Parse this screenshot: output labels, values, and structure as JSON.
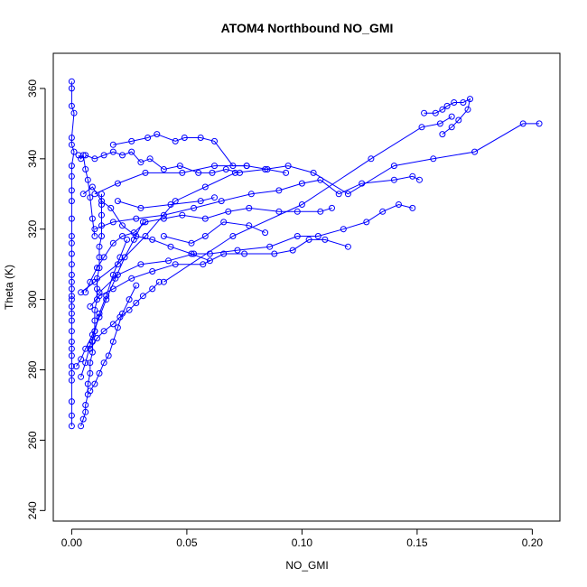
{
  "chart_data": {
    "type": "scatter",
    "title": "ATOM4 Northbound NO_GMI",
    "xlabel": "NO_GMI",
    "ylabel": "Theta (K)",
    "xlim": [
      -0.008,
      0.212
    ],
    "ylim": [
      237,
      370
    ],
    "xticks": [
      0.0,
      0.05,
      0.1,
      0.15,
      0.2
    ],
    "xtick_labels": [
      "0.00",
      "0.05",
      "0.10",
      "0.15",
      "0.20"
    ],
    "yticks": [
      240,
      260,
      280,
      300,
      320,
      340,
      360
    ],
    "ytick_labels": [
      "240",
      "260",
      "280",
      "300",
      "320",
      "340",
      "360"
    ],
    "grid": false,
    "legend": "none",
    "marker": "open-circle",
    "line": true,
    "color": "#0000ff",
    "series": [
      {
        "x": [
          0.0,
          0.0,
          0.0,
          0.001,
          0.0,
          0.0,
          0.001,
          0.0,
          0.0,
          0.0,
          0.0,
          0.0,
          0.0,
          0.0,
          0.0,
          0.0,
          0.0,
          0.0,
          0.0,
          0.0,
          0.0,
          0.0,
          0.0,
          0.0,
          0.0,
          0.0,
          0.0,
          0.0,
          0.0,
          0.0,
          0.0,
          0.0,
          0.0,
          0.0
        ],
        "y": [
          362,
          360,
          355,
          353,
          346,
          344,
          342,
          338,
          335,
          331,
          328,
          323,
          318,
          316,
          313,
          310,
          307,
          305,
          303,
          301,
          300,
          298,
          296,
          294,
          291,
          288,
          286,
          284,
          281,
          279,
          277,
          271,
          267,
          264
        ]
      },
      {
        "x": [
          0.004,
          0.005,
          0.006,
          0.006,
          0.007,
          0.007,
          0.008,
          0.008,
          0.009,
          0.009,
          0.01,
          0.01,
          0.01,
          0.011,
          0.011,
          0.011,
          0.012,
          0.012,
          0.012,
          0.013,
          0.013,
          0.013,
          0.013,
          0.013
        ],
        "y": [
          264,
          266,
          268,
          270,
          273,
          276,
          279,
          282,
          285,
          288,
          291,
          294,
          297,
          300,
          303,
          306,
          309,
          312,
          315,
          318,
          321,
          324,
          327,
          330
        ]
      },
      {
        "x": [
          0.006,
          0.008,
          0.011,
          0.014,
          0.018,
          0.022,
          0.027,
          0.032,
          0.04,
          0.048,
          0.058,
          0.068,
          0.077,
          0.09,
          0.098,
          0.108,
          0.113
        ],
        "y": [
          302,
          305,
          309,
          312,
          316,
          318,
          319,
          322,
          323,
          324,
          323,
          325,
          326,
          325,
          325,
          325,
          326
        ]
      },
      {
        "x": [
          0.008,
          0.012,
          0.018,
          0.026,
          0.035,
          0.045,
          0.057,
          0.066,
          0.075,
          0.088,
          0.096,
          0.103,
          0.11,
          0.12
        ],
        "y": [
          298,
          301,
          303,
          306,
          308,
          310,
          310,
          313,
          313,
          313,
          314,
          317,
          317,
          315
        ]
      },
      {
        "x": [
          0.012,
          0.02,
          0.03,
          0.042,
          0.053,
          0.06,
          0.072,
          0.086,
          0.098,
          0.107,
          0.118,
          0.128,
          0.135,
          0.142,
          0.148
        ],
        "y": [
          302,
          307,
          310,
          311,
          313,
          313,
          314,
          315,
          318,
          318,
          320,
          322,
          325,
          327,
          326
        ]
      },
      {
        "x": [
          0.01,
          0.018,
          0.028,
          0.04,
          0.053,
          0.065,
          0.078,
          0.09,
          0.1,
          0.108,
          0.116,
          0.126,
          0.14,
          0.148,
          0.151
        ],
        "y": [
          320,
          322,
          323,
          324,
          326,
          328,
          330,
          331,
          333,
          334,
          330,
          333,
          334,
          335,
          334
        ]
      },
      {
        "x": [
          0.004,
          0.01,
          0.02,
          0.032,
          0.045,
          0.058,
          0.071,
          0.084,
          0.094,
          0.105,
          0.12,
          0.14,
          0.157,
          0.175,
          0.196,
          0.203
        ],
        "y": [
          302,
          305,
          310,
          318,
          328,
          332,
          336,
          337,
          338,
          336,
          330,
          338,
          340,
          342,
          350,
          350
        ]
      },
      {
        "x": [
          0.018,
          0.026,
          0.033,
          0.037,
          0.045,
          0.049,
          0.056,
          0.062,
          0.07,
          0.076
        ],
        "y": [
          344,
          345,
          346,
          347,
          345,
          346,
          346,
          345,
          338,
          338
        ]
      },
      {
        "x": [
          0.006,
          0.01,
          0.014,
          0.018,
          0.022,
          0.026,
          0.03,
          0.034,
          0.04,
          0.047,
          0.055,
          0.061,
          0.067,
          0.073
        ],
        "y": [
          341,
          340,
          341,
          342,
          341,
          342,
          339,
          340,
          337,
          338,
          336,
          336,
          337,
          336
        ]
      },
      {
        "x": [
          0.01,
          0.02,
          0.032,
          0.048,
          0.062,
          0.076,
          0.085,
          0.093
        ],
        "y": [
          330,
          333,
          336,
          336,
          338,
          338,
          337,
          336
        ]
      },
      {
        "x": [
          0.153,
          0.158,
          0.161,
          0.163,
          0.166,
          0.17,
          0.173,
          0.172,
          0.168,
          0.165,
          0.161
        ],
        "y": [
          353,
          353,
          354,
          355,
          356,
          356,
          357,
          354,
          351,
          349,
          347
        ]
      },
      {
        "x": [
          0.04,
          0.07,
          0.1,
          0.13,
          0.152,
          0.16,
          0.165
        ],
        "y": [
          305,
          318,
          327,
          340,
          349,
          350,
          352
        ]
      },
      {
        "x": [
          0.008,
          0.011,
          0.014,
          0.018,
          0.021,
          0.025,
          0.028,
          0.031,
          0.035,
          0.038
        ],
        "y": [
          286,
          289,
          291,
          293,
          295,
          297,
          299,
          301,
          303,
          305
        ]
      },
      {
        "x": [
          0.005,
          0.009,
          0.013,
          0.017,
          0.022,
          0.028,
          0.035,
          0.043,
          0.052,
          0.06
        ],
        "y": [
          330,
          332,
          328,
          326,
          321,
          318,
          317,
          315,
          313,
          311
        ]
      },
      {
        "x": [
          0.002,
          0.004,
          0.006,
          0.009,
          0.012,
          0.015,
          0.019,
          0.023,
          0.027,
          0.031
        ],
        "y": [
          281,
          283,
          286,
          290,
          295,
          300,
          306,
          312,
          317,
          322
        ]
      },
      {
        "x": [
          0.003,
          0.004,
          0.005,
          0.006,
          0.007,
          0.008,
          0.009,
          0.01
        ],
        "y": [
          341,
          340,
          341,
          337,
          334,
          329,
          323,
          318
        ]
      },
      {
        "x": [
          0.004,
          0.006,
          0.008,
          0.01,
          0.012,
          0.015,
          0.018,
          0.021,
          0.024
        ],
        "y": [
          278,
          282,
          287,
          291,
          296,
          301,
          307,
          312,
          317
        ]
      },
      {
        "x": [
          0.008,
          0.01,
          0.012,
          0.014,
          0.016,
          0.018,
          0.02,
          0.022,
          0.025,
          0.028
        ],
        "y": [
          274,
          276,
          279,
          282,
          284,
          288,
          292,
          296,
          300,
          304
        ]
      },
      {
        "x": [
          0.04,
          0.052,
          0.058,
          0.066,
          0.077,
          0.084
        ],
        "y": [
          318,
          316,
          318,
          322,
          321,
          319
        ]
      },
      {
        "x": [
          0.02,
          0.03,
          0.043,
          0.056,
          0.062
        ],
        "y": [
          328,
          326,
          327,
          328,
          329
        ]
      }
    ]
  }
}
